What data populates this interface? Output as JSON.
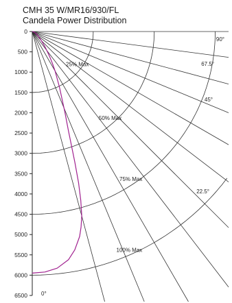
{
  "header": {
    "title": "CMH 35 W/MR16/930/FL",
    "subtitle": "Candela Power Distribution"
  },
  "chart_data": {
    "type": "line",
    "subtype": "polar-candela",
    "title": "CMH 35 W/MR16/930/FL",
    "subtitle": "Candela Power Distribution",
    "ylim": [
      0,
      6500
    ],
    "y_ticks": [
      0,
      500,
      1000,
      1500,
      2000,
      2500,
      3000,
      3500,
      4000,
      4500,
      5000,
      5500,
      6000,
      6500
    ],
    "angle_labels": [
      {
        "deg": 0,
        "text": "0°"
      },
      {
        "deg": 22.5,
        "text": "22.5°"
      },
      {
        "deg": 45,
        "text": "45°"
      },
      {
        "deg": 67.5,
        "text": "67.5°"
      },
      {
        "deg": 90,
        "text": "90°"
      }
    ],
    "angle_lines_deg": [
      15,
      22.5,
      30,
      37.5,
      45,
      52.5,
      60,
      67.5,
      75,
      82.5,
      90
    ],
    "iso_arcs": [
      {
        "label": "25% Max",
        "candela": 1500
      },
      {
        "label": "50% Max",
        "candela": 3000
      },
      {
        "label": "75% Max",
        "candela": 4500
      },
      {
        "label": "100% Max",
        "candela": 6000
      }
    ],
    "series": [
      {
        "color": "#a0208f",
        "angles_deg": [
          0,
          3,
          6,
          9,
          11,
          13,
          14,
          15,
          16,
          17,
          18,
          19,
          20,
          22,
          24,
          26,
          28,
          30,
          32,
          34,
          36,
          40,
          44,
          50,
          60,
          70,
          80,
          90
        ],
        "values": [
          5950,
          5930,
          5860,
          5690,
          5480,
          5180,
          4960,
          4700,
          4330,
          3900,
          3400,
          2950,
          2600,
          2140,
          1780,
          1530,
          1300,
          1120,
          950,
          800,
          670,
          480,
          340,
          220,
          120,
          60,
          25,
          0
        ]
      }
    ]
  }
}
